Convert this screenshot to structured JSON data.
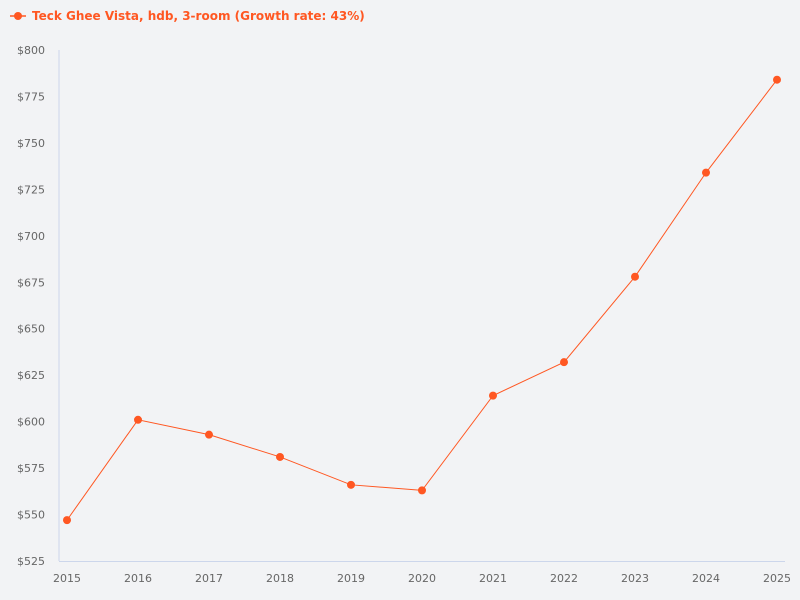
{
  "chart_data": {
    "type": "line",
    "legend_position": "top-left",
    "grid": false,
    "color": "#ff5722",
    "categories": [
      "2015",
      "2016",
      "2017",
      "2018",
      "2019",
      "2020",
      "2021",
      "2022",
      "2023",
      "2024",
      "2025"
    ],
    "series": [
      {
        "name": "Teck Ghee Vista, hdb, 3-room (Growth rate: 43%)",
        "values": [
          547,
          601,
          593,
          581,
          566,
          563,
          614,
          632,
          678,
          734,
          784
        ]
      }
    ],
    "ylim": [
      525,
      800
    ],
    "yticks": [
      525,
      550,
      575,
      600,
      625,
      650,
      675,
      700,
      725,
      750,
      775,
      800
    ],
    "ytick_labels": [
      "$525",
      "$550",
      "$575",
      "$600",
      "$625",
      "$650",
      "$675",
      "$700",
      "$725",
      "$750",
      "$775",
      "$800"
    ]
  }
}
